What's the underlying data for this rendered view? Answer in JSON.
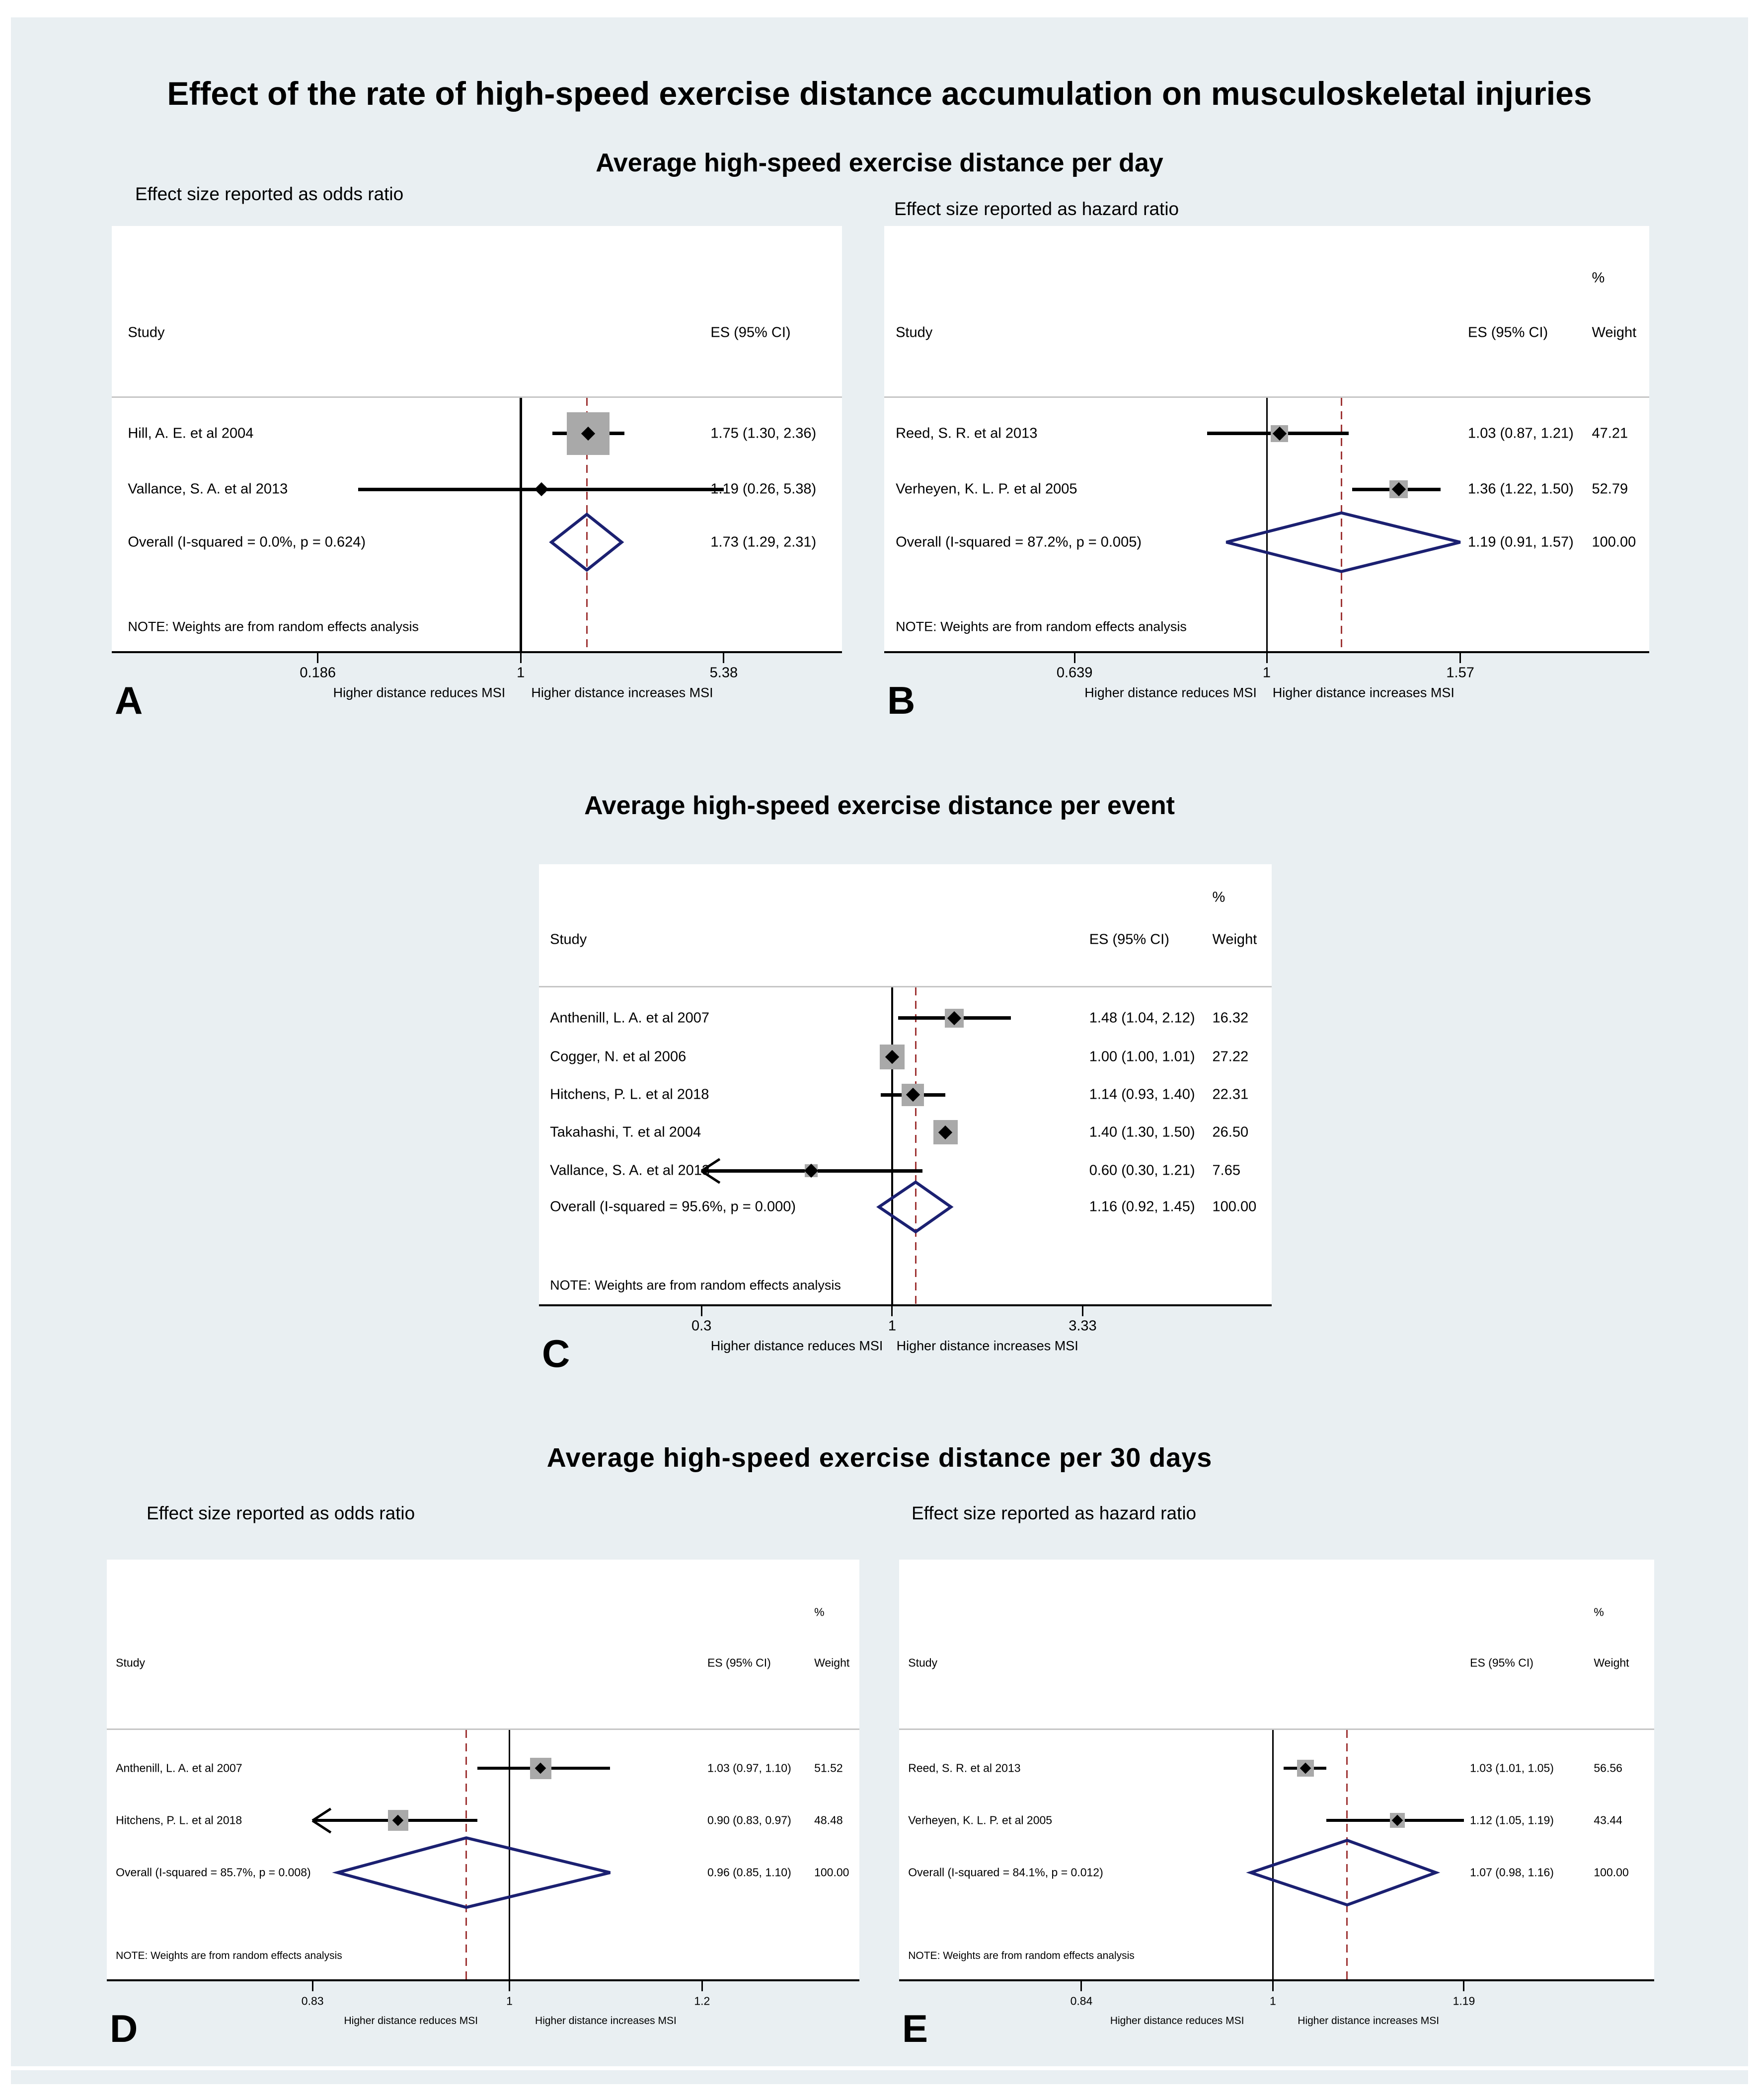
{
  "title": "Effect of the rate of high-speed exercise distance accumulation on musculoskeletal injuries",
  "sections": [
    {
      "heading": "Average high-speed exercise distance per day",
      "left_subtitle": "Effect size reported as odds ratio",
      "right_subtitle": "Effect size reported as hazard ratio"
    },
    {
      "heading": "Average high-speed exercise distance per event"
    },
    {
      "heading": "Average high-speed exercise distance per 30 days",
      "left_subtitle": "Effect size reported as odds ratio",
      "right_subtitle": "Effect size reported as hazard ratio"
    }
  ],
  "note": "NOTE: Weights are from random effects analysis",
  "axis_direction_labels": {
    "left": "Higher distance reduces MSI",
    "right": "Higher distance increases MSI"
  },
  "colors": {
    "background": "#e9eff2",
    "panel": "#ffffff",
    "diamond": "#1b2071",
    "dashed_ref_line": "#9e3434",
    "weight_square": "#a9a9a9"
  },
  "chart_data": [
    {
      "id": "A",
      "panel_label": "A",
      "type": "forest",
      "xscale": "log",
      "section": "Average high-speed exercise distance per day",
      "effect_measure": "odds ratio",
      "columns": {
        "study": "Study",
        "es": "ES (95% CI)"
      },
      "x_ticks": [
        0.186,
        1,
        5.38
      ],
      "x_tick_labels": [
        "0.186",
        "1",
        "5.38"
      ],
      "dashed_ref": 1.73,
      "rows": [
        {
          "study": "Hill, A. E. et al 2004",
          "es": 1.75,
          "ci_low": 1.3,
          "ci_high": 2.36,
          "es_text": "1.75 (1.30, 2.36)",
          "weight_text": null,
          "marker_weight": 97,
          "clip_low": false
        },
        {
          "study": "Vallance, S. A. et al 2013",
          "es": 1.19,
          "ci_low": 0.26,
          "ci_high": 5.38,
          "es_text": "1.19 (0.26, 5.38)",
          "weight_text": null,
          "marker_weight": 3,
          "clip_low": false
        }
      ],
      "overall": {
        "label": "Overall  (I-squared = 0.0%, p = 0.624)",
        "es": 1.73,
        "ci_low": 1.29,
        "ci_high": 2.31,
        "es_text": "1.73 (1.29, 2.31)",
        "weight_text": null
      }
    },
    {
      "id": "B",
      "panel_label": "B",
      "type": "forest",
      "xscale": "log",
      "section": "Average high-speed exercise distance per day",
      "effect_measure": "hazard ratio",
      "columns": {
        "study": "Study",
        "es": "ES (95% CI)",
        "pct": "%",
        "weight": "Weight"
      },
      "x_ticks": [
        0.639,
        1,
        1.57
      ],
      "x_tick_labels": [
        "0.639",
        "1",
        "1.57"
      ],
      "dashed_ref": 1.19,
      "rows": [
        {
          "study": "Reed, S. R. et al 2013",
          "es": 1.03,
          "ci_low": 0.87,
          "ci_high": 1.21,
          "es_text": "1.03 (0.87, 1.21)",
          "weight_text": "47.21",
          "marker_weight": 47.21,
          "clip_low": false
        },
        {
          "study": "Verheyen, K. L. P. et al 2005",
          "es": 1.36,
          "ci_low": 1.22,
          "ci_high": 1.5,
          "es_text": "1.36 (1.22, 1.50)",
          "weight_text": "52.79",
          "marker_weight": 52.79,
          "clip_low": false
        }
      ],
      "overall": {
        "label": "Overall  (I-squared = 87.2%, p = 0.005)",
        "es": 1.19,
        "ci_low": 0.91,
        "ci_high": 1.57,
        "es_text": "1.19 (0.91, 1.57)",
        "weight_text": "100.00"
      }
    },
    {
      "id": "C",
      "panel_label": "C",
      "type": "forest",
      "xscale": "log",
      "section": "Average high-speed exercise distance per event",
      "effect_measure": "effect size",
      "columns": {
        "study": "Study",
        "es": "ES (95% CI)",
        "pct": "%",
        "weight": "Weight"
      },
      "x_ticks": [
        0.3,
        1,
        3.33
      ],
      "x_tick_labels": [
        "0.3",
        "1",
        "3.33"
      ],
      "dashed_ref": 1.16,
      "rows": [
        {
          "study": "Anthenill, L. A. et al 2007",
          "es": 1.48,
          "ci_low": 1.04,
          "ci_high": 2.12,
          "es_text": "1.48 (1.04, 2.12)",
          "weight_text": "16.32",
          "marker_weight": 16.32,
          "clip_low": false
        },
        {
          "study": "Cogger, N. et al 2006",
          "es": 1.0,
          "ci_low": 1.0,
          "ci_high": 1.01,
          "es_text": "1.00 (1.00, 1.01)",
          "weight_text": "27.22",
          "marker_weight": 27.22,
          "clip_low": false
        },
        {
          "study": "Hitchens, P. L. et al 2018",
          "es": 1.14,
          "ci_low": 0.93,
          "ci_high": 1.4,
          "es_text": "1.14 (0.93, 1.40)",
          "weight_text": "22.31",
          "marker_weight": 22.31,
          "clip_low": false
        },
        {
          "study": "Takahashi, T. et al 2004",
          "es": 1.4,
          "ci_low": 1.3,
          "ci_high": 1.5,
          "es_text": "1.40 (1.30, 1.50)",
          "weight_text": "26.50",
          "marker_weight": 26.5,
          "clip_low": false
        },
        {
          "study": "Vallance, S. A. et al 2013",
          "es": 0.6,
          "ci_low": 0.3,
          "ci_high": 1.21,
          "es_text": "0.60 (0.30, 1.21)",
          "weight_text": "7.65",
          "marker_weight": 7.65,
          "clip_low": true
        }
      ],
      "overall": {
        "label": "Overall  (I-squared = 95.6%, p = 0.000)",
        "es": 1.16,
        "ci_low": 0.92,
        "ci_high": 1.45,
        "es_text": "1.16 (0.92, 1.45)",
        "weight_text": "100.00"
      }
    },
    {
      "id": "D",
      "panel_label": "D",
      "type": "forest",
      "xscale": "log",
      "section": "Average high-speed exercise distance per 30 days",
      "effect_measure": "odds ratio",
      "columns": {
        "study": "Study",
        "es": "ES (95% CI)",
        "pct": "%",
        "weight": "Weight"
      },
      "x_ticks": [
        0.83,
        1,
        1.2
      ],
      "x_tick_labels": [
        "0.83",
        "1",
        "1.2"
      ],
      "dashed_ref": 0.96,
      "rows": [
        {
          "study": "Anthenill, L. A. et al 2007",
          "es": 1.03,
          "ci_low": 0.97,
          "ci_high": 1.1,
          "es_text": "1.03 (0.97, 1.10)",
          "weight_text": "51.52",
          "marker_weight": 51.52,
          "clip_low": false
        },
        {
          "study": "Hitchens, P. L. et al 2018",
          "es": 0.9,
          "ci_low": 0.83,
          "ci_high": 0.97,
          "es_text": "0.90 (0.83, 0.97)",
          "weight_text": "48.48",
          "marker_weight": 48.48,
          "clip_low": true
        }
      ],
      "overall": {
        "label": "Overall  (I-squared = 85.7%, p = 0.008)",
        "es": 0.96,
        "ci_low": 0.85,
        "ci_high": 1.1,
        "es_text": "0.96 (0.85, 1.10)",
        "weight_text": "100.00"
      }
    },
    {
      "id": "E",
      "panel_label": "E",
      "type": "forest",
      "xscale": "log",
      "section": "Average high-speed exercise distance per 30 days",
      "effect_measure": "hazard ratio",
      "columns": {
        "study": "Study",
        "es": "ES (95% CI)",
        "pct": "%",
        "weight": "Weight"
      },
      "x_ticks": [
        0.84,
        1,
        1.19
      ],
      "x_tick_labels": [
        "0.84",
        "1",
        "1.19"
      ],
      "dashed_ref": 1.07,
      "rows": [
        {
          "study": "Reed, S. R. et al 2013",
          "es": 1.03,
          "ci_low": 1.01,
          "ci_high": 1.05,
          "es_text": "1.03 (1.01, 1.05)",
          "weight_text": "56.56",
          "marker_weight": 56.56,
          "clip_low": false
        },
        {
          "study": "Verheyen, K. L. P. et al 2005",
          "es": 1.12,
          "ci_low": 1.05,
          "ci_high": 1.19,
          "es_text": "1.12 (1.05, 1.19)",
          "weight_text": "43.44",
          "marker_weight": 43.44,
          "clip_low": false
        }
      ],
      "overall": {
        "label": "Overall  (I-squared = 84.1%, p = 0.012)",
        "es": 1.07,
        "ci_low": 0.98,
        "ci_high": 1.16,
        "es_text": "1.07 (0.98, 1.16)",
        "weight_text": "100.00"
      }
    }
  ]
}
